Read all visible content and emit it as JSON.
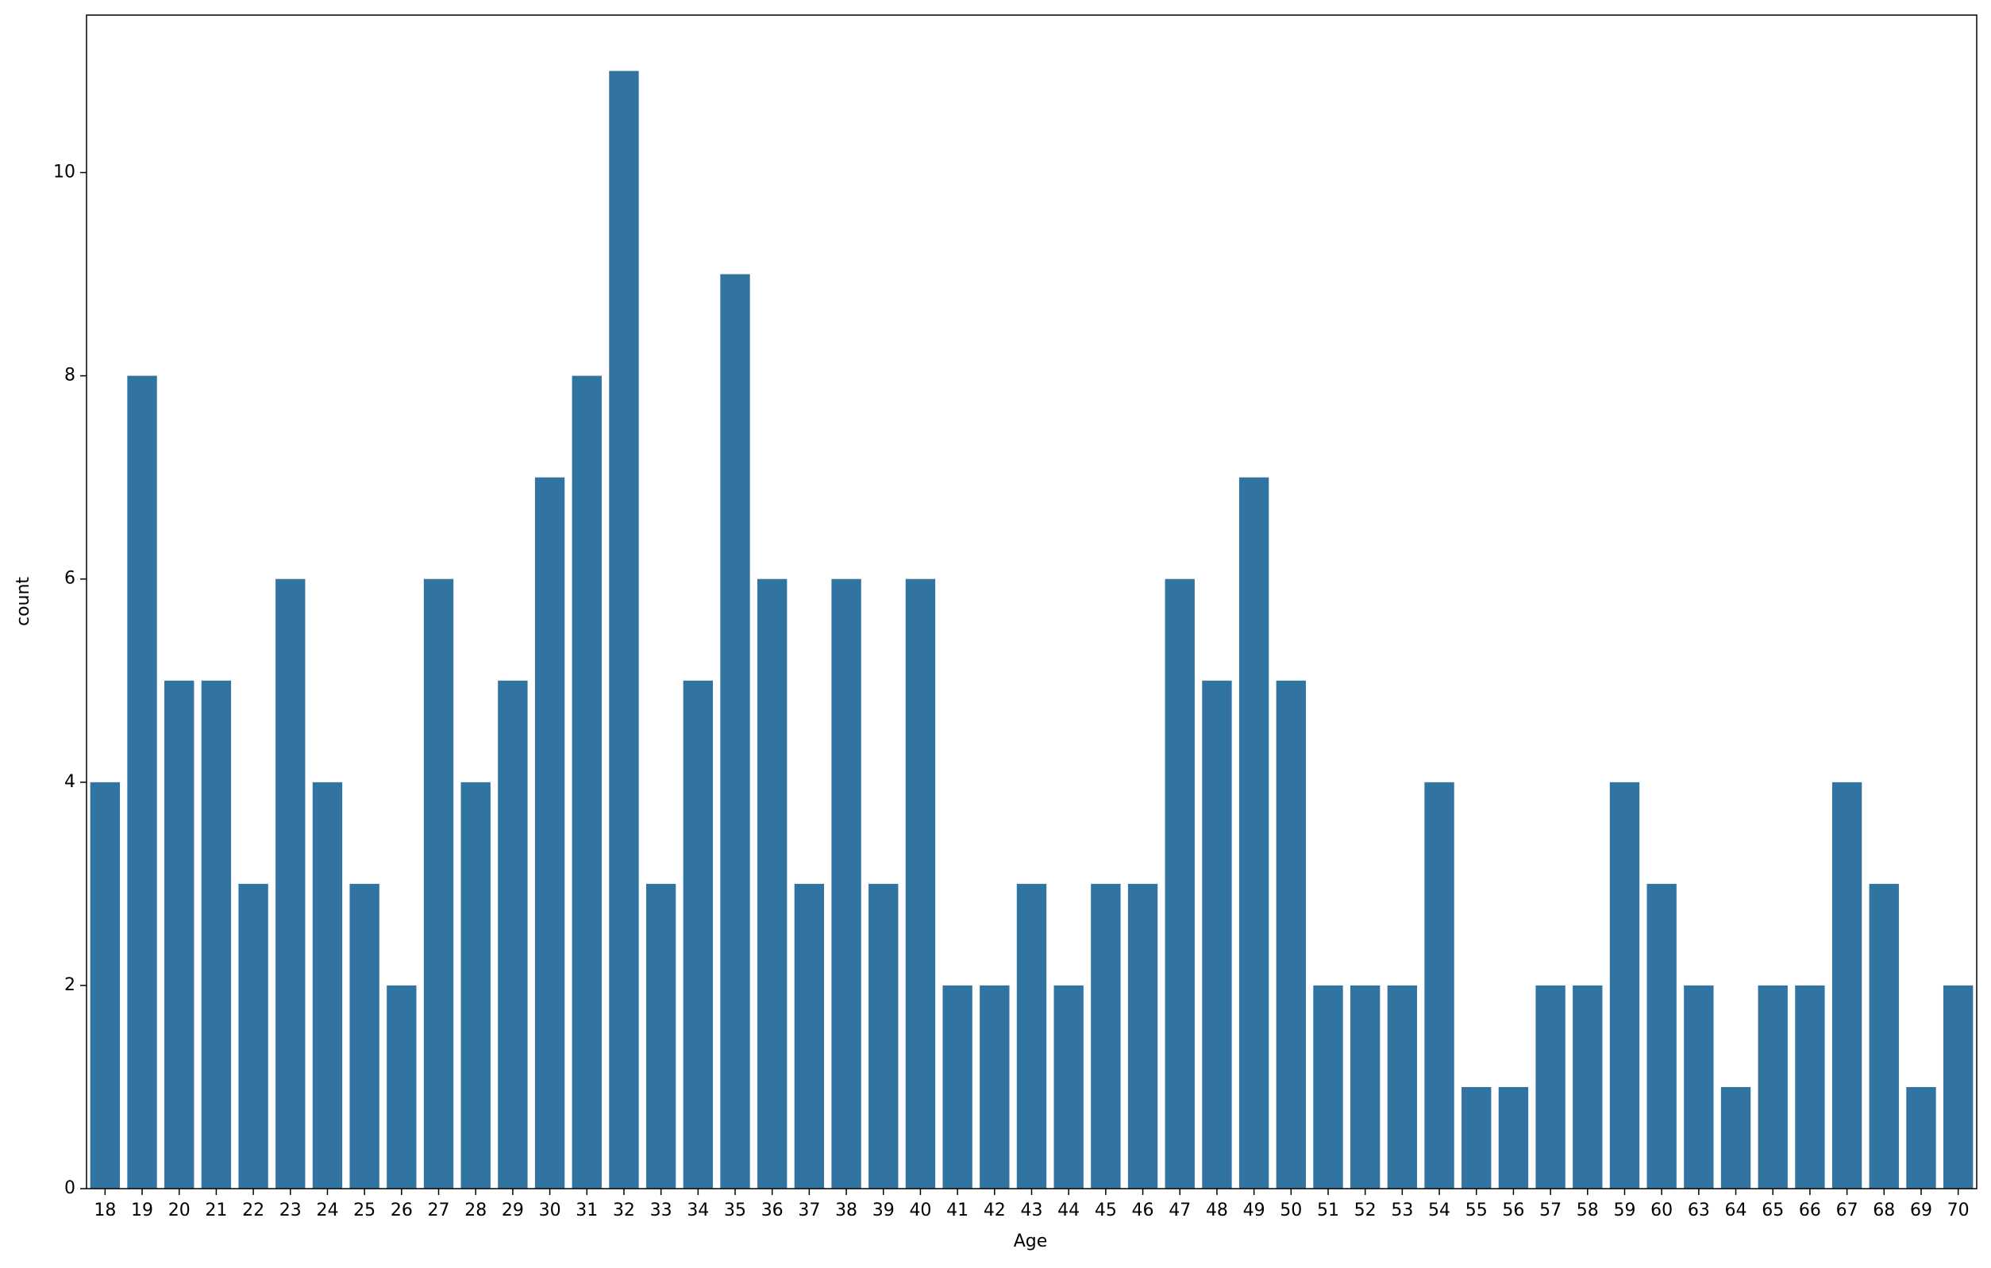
{
  "chart_data": {
    "type": "bar",
    "x_label": "Age",
    "y_label": "count",
    "categories": [
      "18",
      "19",
      "20",
      "21",
      "22",
      "23",
      "24",
      "25",
      "26",
      "27",
      "28",
      "29",
      "30",
      "31",
      "32",
      "33",
      "34",
      "35",
      "36",
      "37",
      "38",
      "39",
      "40",
      "41",
      "42",
      "43",
      "44",
      "45",
      "46",
      "47",
      "48",
      "49",
      "50",
      "51",
      "52",
      "53",
      "54",
      "55",
      "56",
      "57",
      "58",
      "59",
      "60",
      "63",
      "64",
      "65",
      "66",
      "67",
      "68",
      "69",
      "70"
    ],
    "values": [
      4,
      8,
      5,
      5,
      3,
      6,
      4,
      3,
      2,
      6,
      4,
      5,
      7,
      8,
      11,
      3,
      5,
      9,
      6,
      3,
      6,
      3,
      6,
      2,
      2,
      3,
      2,
      3,
      3,
      6,
      5,
      7,
      5,
      2,
      2,
      2,
      4,
      1,
      1,
      2,
      2,
      4,
      3,
      2,
      1,
      2,
      2,
      4,
      3,
      1,
      2
    ],
    "color": "#3274a1",
    "ylim": [
      0,
      11.55
    ],
    "yticks": [
      0,
      2,
      4,
      6,
      8,
      10
    ],
    "grid": false
  }
}
